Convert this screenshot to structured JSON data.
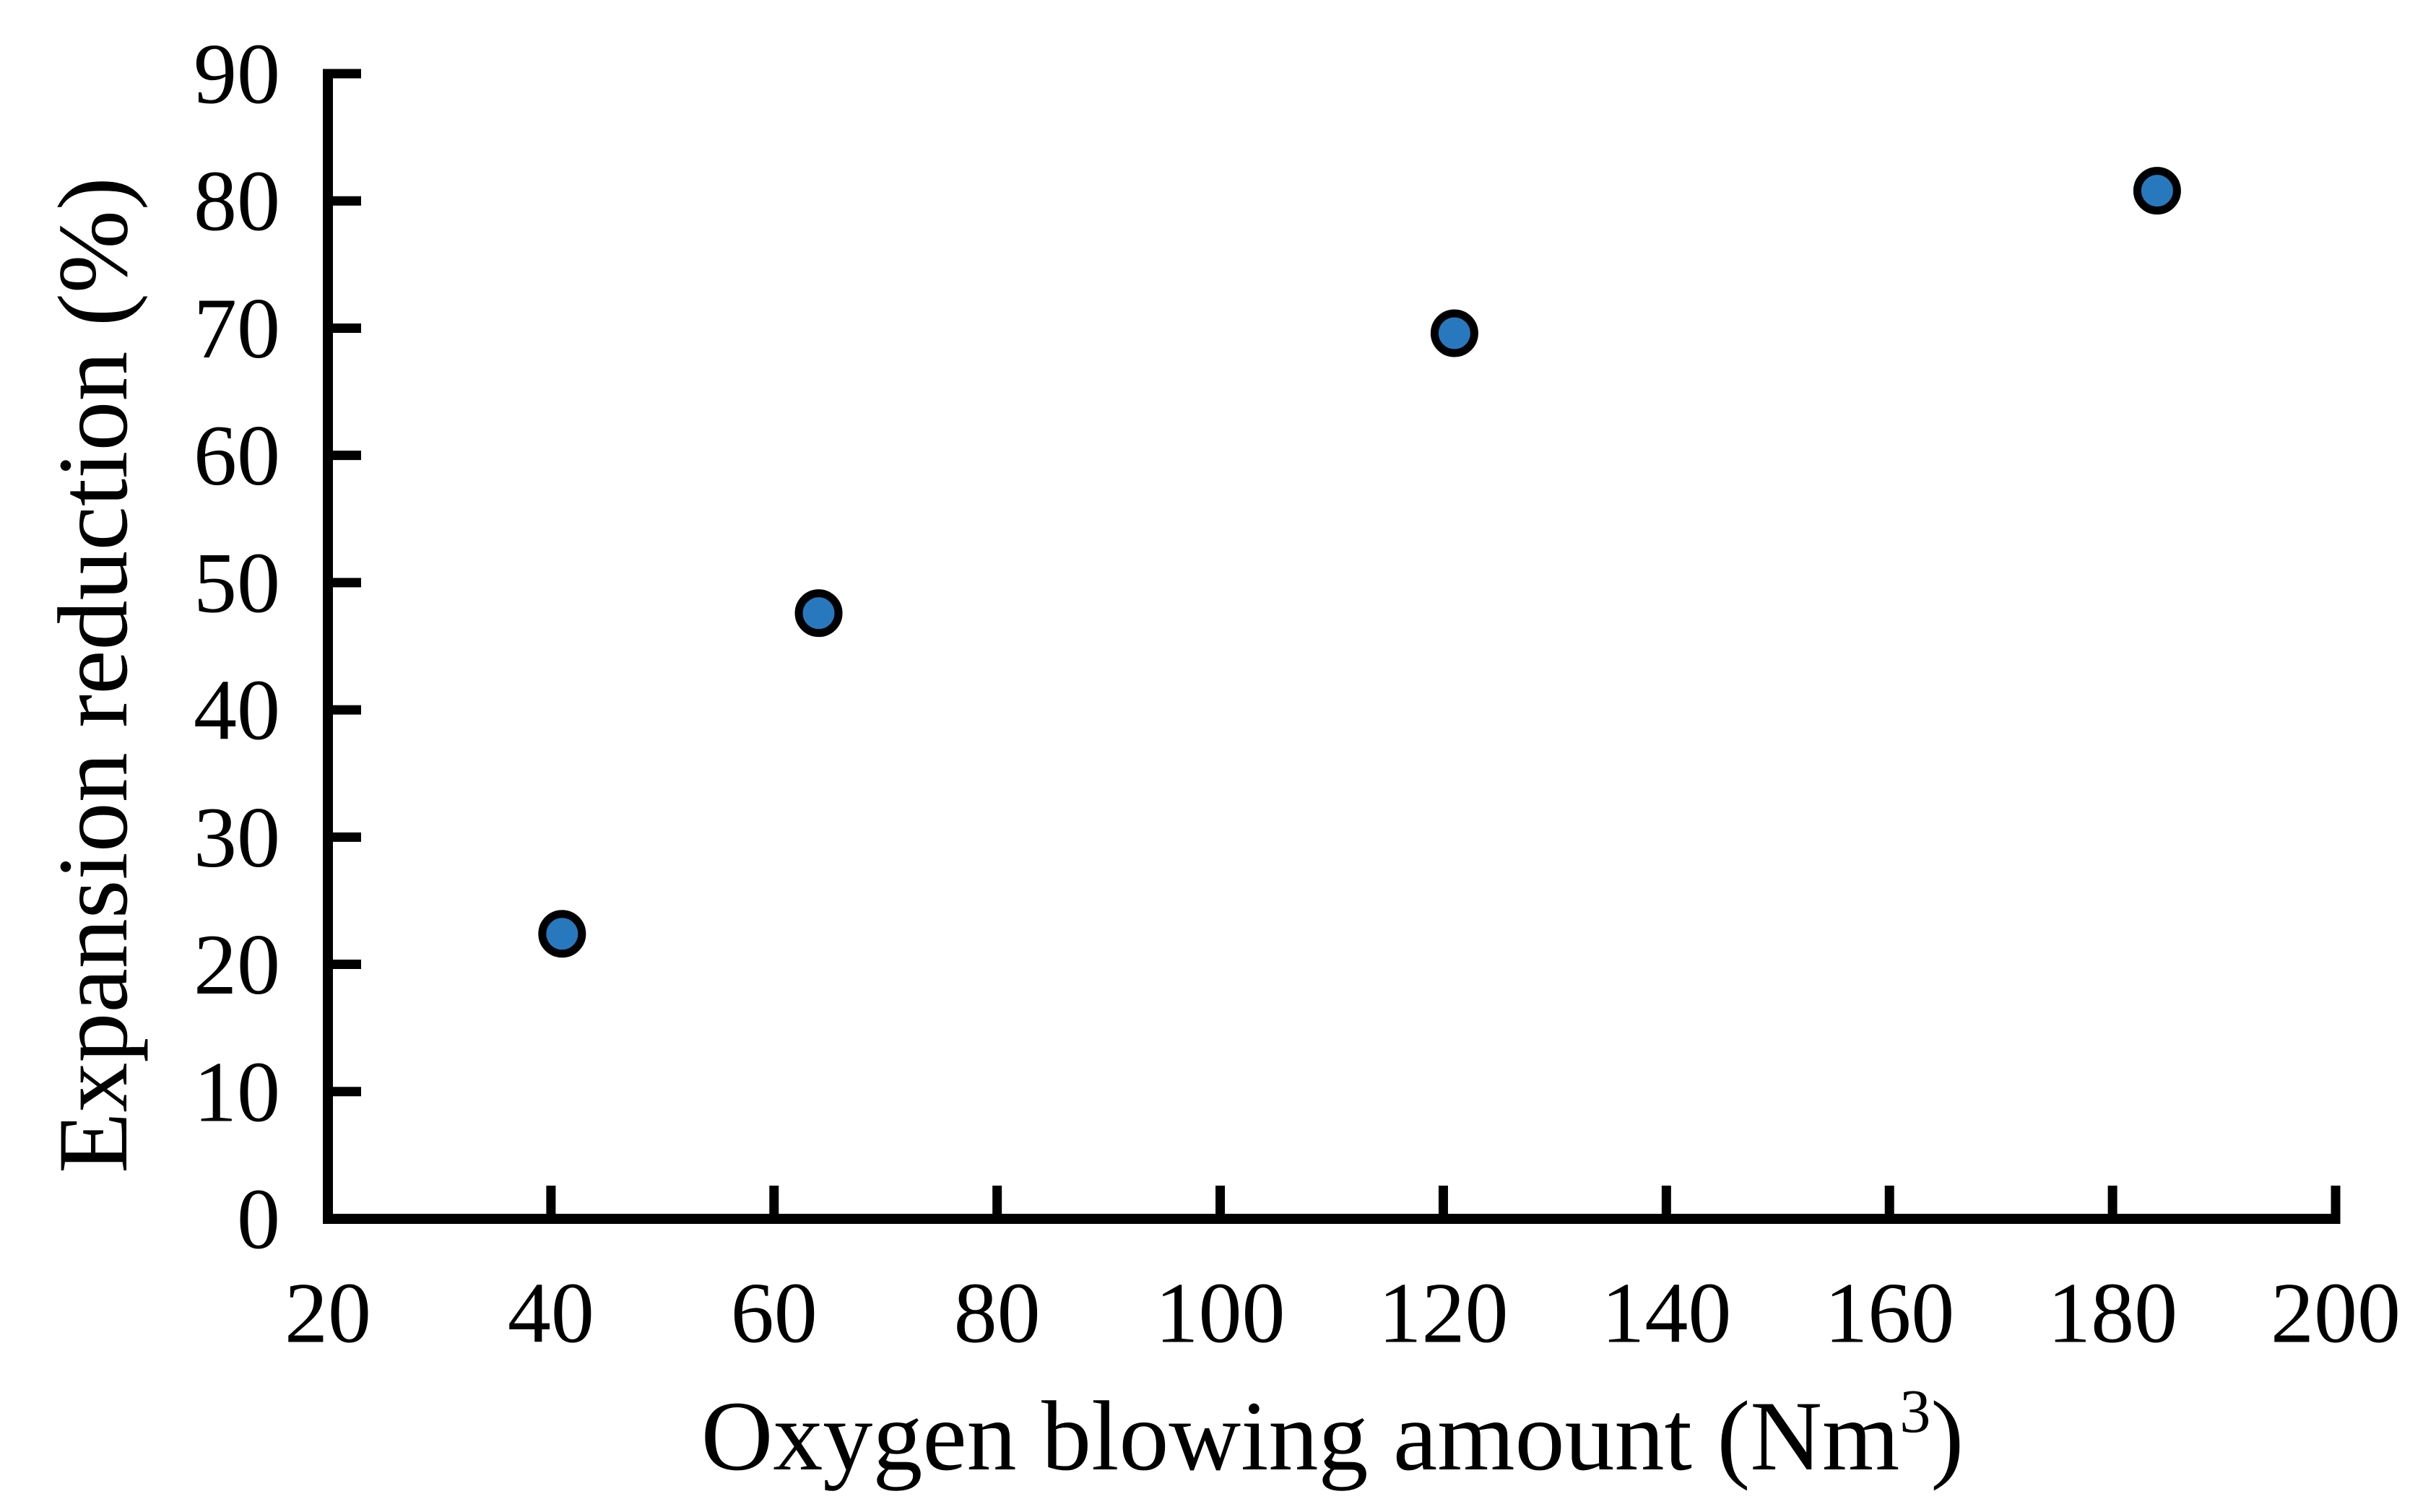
{
  "chart_data": {
    "type": "scatter",
    "title": "",
    "xlabel": "Oxygen blowing amount (Nm³)",
    "xlabel_parts": {
      "pre": "Oxygen blowing amount (Nm",
      "sup": "3",
      "post": ")"
    },
    "ylabel": "Expansion reduction  (%)",
    "xlim": [
      20,
      200
    ],
    "ylim": [
      0,
      90
    ],
    "xticks": [
      20,
      40,
      60,
      80,
      100,
      120,
      140,
      160,
      180,
      200
    ],
    "yticks": [
      0,
      10,
      20,
      30,
      40,
      50,
      60,
      70,
      80,
      90
    ],
    "grid": false,
    "legend_position": "none",
    "series": [
      {
        "name": "Expansion reduction",
        "marker": "circle",
        "marker_fill": "#2878BE",
        "marker_edge": "#000000",
        "points": [
          {
            "x": 41,
            "y": 22.4
          },
          {
            "x": 64,
            "y": 47.6
          },
          {
            "x": 121,
            "y": 69.6
          },
          {
            "x": 184,
            "y": 80.8
          }
        ]
      }
    ]
  },
  "colors": {
    "background": "#ffffff",
    "axis": "#000000",
    "text": "#000000",
    "point_fill": "#2878BE",
    "point_edge": "#000000"
  }
}
